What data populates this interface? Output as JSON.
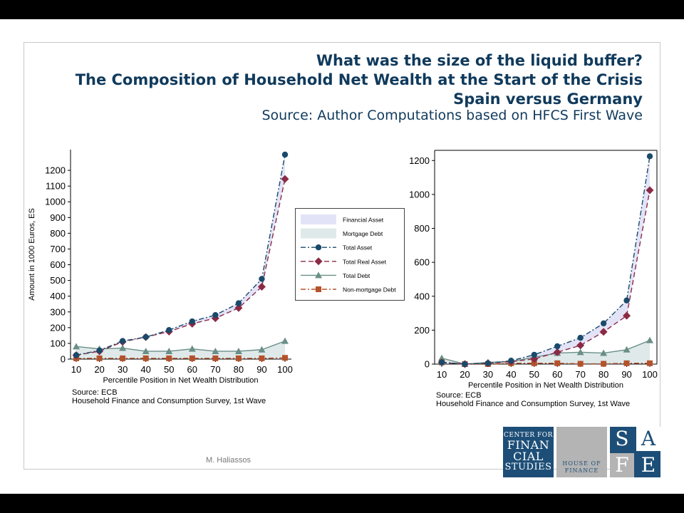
{
  "title_lines": [
    "What was the size of the liquid buffer?",
    "The Composition of Household Net Wealth at the Start of the Crisis",
    "Spain versus Germany"
  ],
  "subtitle": "Source: Author Computations based on HFCS  First Wave",
  "legend": {
    "items": [
      {
        "label": "Financial Asset",
        "kind": "area",
        "color": "#e3e3f7"
      },
      {
        "label": "Mortgage Debt",
        "kind": "area",
        "color": "#dfe9ea"
      },
      {
        "label": "Total Asset",
        "kind": "line",
        "color": "#1a4a6b",
        "dash": "dashdot",
        "marker": "circle"
      },
      {
        "label": "Total Real Asset",
        "kind": "line",
        "color": "#8b2a45",
        "dash": "dash",
        "marker": "diamond"
      },
      {
        "label": "Total Debt",
        "kind": "line",
        "color": "#6a8f86",
        "dash": "solid",
        "marker": "triangle"
      },
      {
        "label": "Non-mortgage Debt",
        "kind": "line",
        "color": "#b5522b",
        "dash": "dashdot",
        "marker": "square"
      }
    ]
  },
  "notes": {
    "source_line1": "Source: ECB",
    "source_line2": "Household Finance and Consumption Survey, 1st Wave"
  },
  "footer": "M. Haliassos",
  "logos": {
    "cfs_lines": [
      "CENTER FOR",
      "FINAN",
      "CIAL",
      "STUDIES"
    ],
    "hof_lines": [
      "HOUSE OF",
      "FINANCE"
    ],
    "safe_letters": [
      "S",
      "A",
      "F",
      "E"
    ]
  },
  "colors": {
    "title": "#103a5c",
    "financial_asset_fill": "#e3e3f7",
    "mortgage_debt_fill": "#dfe9ea",
    "total_asset": "#1a4a6b",
    "total_real_asset": "#8b2a45",
    "total_debt": "#6a8f86",
    "non_mortgage_debt": "#b5522b",
    "logo_blue": "#1d4e77",
    "logo_grey": "#b4b4b4"
  },
  "chart_data": [
    {
      "type": "line",
      "title": "",
      "xlabel": "Percentile Position in Net Wealth Distribution",
      "ylabel": "Amount in 1000 Euros, ES",
      "x": [
        10,
        20,
        30,
        40,
        50,
        60,
        70,
        80,
        90,
        100
      ],
      "xticks": [
        10,
        20,
        30,
        40,
        50,
        60,
        70,
        80,
        90,
        100
      ],
      "yticks": [
        0,
        100,
        200,
        300,
        400,
        500,
        600,
        700,
        800,
        900,
        1000,
        1100,
        1200
      ],
      "ylim": [
        0,
        1300
      ],
      "grid": false,
      "series": [
        {
          "name": "Total Asset",
          "values": [
            25,
            55,
            115,
            140,
            185,
            240,
            280,
            355,
            510,
            1300
          ]
        },
        {
          "name": "Total Real Asset",
          "values": [
            25,
            50,
            110,
            140,
            175,
            225,
            260,
            325,
            460,
            1145
          ]
        },
        {
          "name": "Total Debt",
          "values": [
            80,
            65,
            70,
            50,
            50,
            65,
            50,
            50,
            60,
            115
          ]
        },
        {
          "name": "Non-mortgage Debt",
          "values": [
            5,
            5,
            5,
            5,
            5,
            5,
            5,
            5,
            5,
            8
          ]
        }
      ]
    },
    {
      "type": "line",
      "title": "",
      "xlabel": "Percentile Position in Net Wealth Distribution",
      "ylabel": "",
      "x": [
        10,
        20,
        30,
        40,
        50,
        60,
        70,
        80,
        90,
        100
      ],
      "xticks": [
        10,
        20,
        30,
        40,
        50,
        60,
        70,
        80,
        90,
        100
      ],
      "yticks": [
        0,
        200,
        400,
        600,
        800,
        1000,
        1200
      ],
      "ylim": [
        0,
        1260
      ],
      "grid": false,
      "series": [
        {
          "name": "Total Asset",
          "values": [
            10,
            0,
            5,
            20,
            55,
            105,
            155,
            240,
            375,
            1225
          ]
        },
        {
          "name": "Total Real Asset",
          "values": [
            10,
            0,
            5,
            15,
            30,
            70,
            110,
            190,
            285,
            1025
          ]
        },
        {
          "name": "Total Debt",
          "values": [
            35,
            0,
            10,
            15,
            40,
            65,
            70,
            65,
            85,
            140
          ]
        },
        {
          "name": "Non-mortgage Debt",
          "values": [
            10,
            0,
            0,
            5,
            5,
            5,
            2,
            2,
            5,
            5
          ]
        }
      ]
    }
  ]
}
